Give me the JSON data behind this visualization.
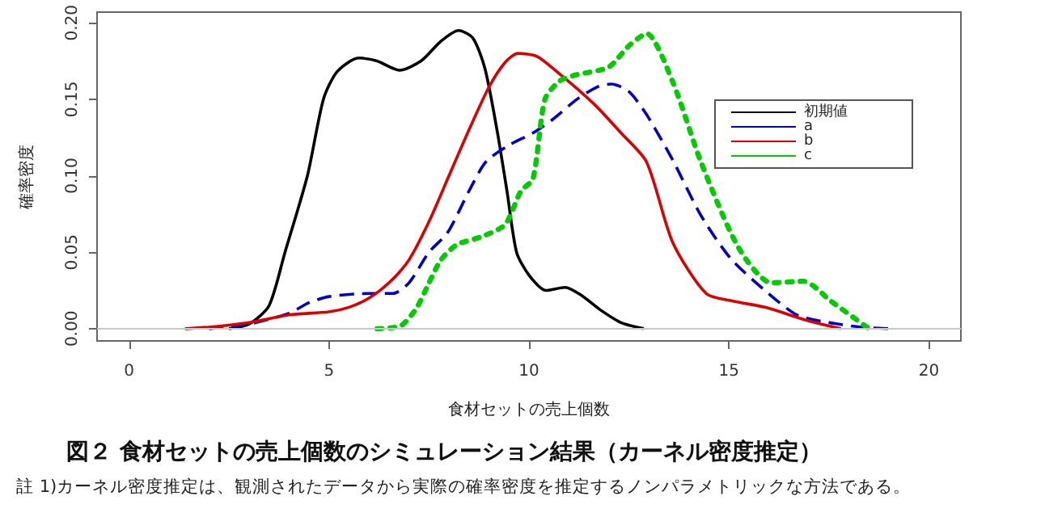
{
  "chart_data": {
    "type": "line",
    "title": "図２ 食材セットの売上個数のシミュレーション結果（カーネル密度推定）",
    "xlabel": "食材セットの売上個数",
    "ylabel": "確率密度",
    "annotations": [
      "註 1)カーネル密度推定は、観測されたデータから実際の確率密度を推定するノンパラメトリックな方法である。"
    ],
    "xlim": [
      -0.8,
      20.8
    ],
    "xticks": [
      0,
      5,
      10,
      15,
      20
    ],
    "ylim": [
      -0.008,
      0.207
    ],
    "yticks": [
      {
        "value": 0,
        "label": "0.00"
      },
      {
        "value": 0.05,
        "label": "0.05"
      },
      {
        "value": 0.1,
        "label": "0.10"
      },
      {
        "value": 0.15,
        "label": "0.15"
      },
      {
        "value": 0.2,
        "label": "0.20"
      }
    ],
    "grid": false,
    "legend": "top right",
    "marker": "none",
    "ref_lines": [
      {
        "axis": "y",
        "value": 0,
        "color": "#c8c8c8"
      }
    ],
    "series": [
      {
        "name": "初期値",
        "color": "#000000",
        "line_style": "solid",
        "x": [
          2.5,
          3,
          3.5,
          3.9,
          4.46,
          4.86,
          5.2,
          5.74,
          6.2,
          6.76,
          7.3,
          7.8,
          8.24,
          8.6,
          8.9,
          9.2,
          9.45,
          9.69,
          10,
          10.43,
          10.9,
          11.3,
          11.8,
          12.3,
          12.87
        ],
        "values": [
          0,
          0.003,
          0.015,
          0.05,
          0.1,
          0.15,
          0.168,
          0.177,
          0.175,
          0.169,
          0.175,
          0.188,
          0.195,
          0.19,
          0.17,
          0.13,
          0.09,
          0.05,
          0.035,
          0.025,
          0.027,
          0.022,
          0.012,
          0.004,
          0
        ]
      },
      {
        "name": "a",
        "color": "#0000cc",
        "line_style": "dashed",
        "x": [
          2,
          3,
          4,
          4.5,
          5,
          6,
          6.6,
          7,
          7.5,
          7.97,
          8.5,
          8.92,
          9.5,
          10.1,
          10.6,
          11.2,
          11.7,
          12.06,
          12.5,
          12.94,
          13.6,
          14.3,
          15.04,
          15.9,
          16.7,
          17.5,
          18.3,
          19
        ],
        "values": [
          0,
          0.003,
          0.01,
          0.017,
          0.021,
          0.023,
          0.023,
          0.03,
          0.05,
          0.063,
          0.09,
          0.109,
          0.12,
          0.128,
          0.137,
          0.15,
          0.158,
          0.16,
          0.155,
          0.14,
          0.11,
          0.074,
          0.046,
          0.025,
          0.009,
          0.004,
          0.001,
          0
        ]
      },
      {
        "name": "b",
        "color": "#dd0000",
        "line_style": "solid",
        "x": [
          1.4,
          2,
          3,
          4,
          5,
          5.5,
          6,
          6.5,
          7,
          7.5,
          8,
          8.5,
          9,
          9.4,
          9.72,
          10.2,
          10.7,
          11.2,
          11.7,
          12.3,
          12.94,
          13.6,
          14.43,
          15.1,
          15.9,
          17,
          17.8
        ],
        "values": [
          0,
          0.001,
          0.004,
          0.009,
          0.011,
          0.014,
          0.02,
          0.03,
          0.045,
          0.07,
          0.1,
          0.13,
          0.158,
          0.174,
          0.18,
          0.178,
          0.168,
          0.157,
          0.145,
          0.128,
          0.109,
          0.056,
          0.023,
          0.018,
          0.014,
          0.005,
          0
        ]
      },
      {
        "name": "c",
        "color": "#00cc00",
        "line_style": "dotted",
        "x": [
          6.2,
          6.8,
          7.2,
          7.5,
          7.8,
          8.2,
          8.8,
          9.4,
          9.8,
          10.1,
          10.4,
          10.77,
          11.18,
          11.99,
          12.5,
          12.94,
          13.6,
          14.3,
          15.24,
          16.06,
          16.87,
          17.55,
          18.5
        ],
        "values": [
          0,
          0.002,
          0.014,
          0.03,
          0.045,
          0.055,
          0.06,
          0.068,
          0.09,
          0.098,
          0.15,
          0.162,
          0.166,
          0.171,
          0.185,
          0.193,
          0.161,
          0.109,
          0.053,
          0.03,
          0.031,
          0.018,
          0
        ]
      }
    ]
  }
}
